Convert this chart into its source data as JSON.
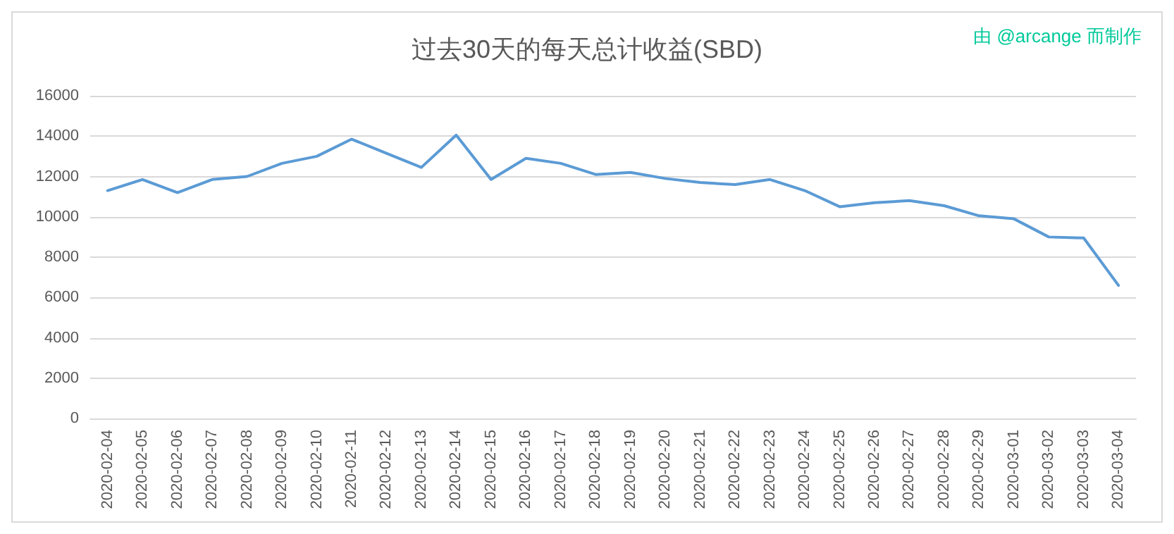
{
  "chart_data": {
    "type": "line",
    "title": "过去30天的每天总计收益(SBD)",
    "annotations": [
      "由 @arcange 而制作"
    ],
    "categories": [
      "2020-02-04",
      "2020-02-05",
      "2020-02-06",
      "2020-02-07",
      "2020-02-08",
      "2020-02-09",
      "2020-02-10",
      "2020-02-11",
      "2020-02-12",
      "2020-02-13",
      "2020-02-14",
      "2020-02-15",
      "2020-02-16",
      "2020-02-17",
      "2020-02-18",
      "2020-02-19",
      "2020-02-20",
      "2020-02-21",
      "2020-02-22",
      "2020-02-23",
      "2020-02-24",
      "2020-02-25",
      "2020-02-26",
      "2020-02-27",
      "2020-02-28",
      "2020-02-29",
      "2020-03-01",
      "2020-03-02",
      "2020-03-03",
      "2020-03-04"
    ],
    "series": [
      {
        "color": "#5b9bd5",
        "values": [
          11300,
          11850,
          11200,
          11850,
          12000,
          12650,
          13000,
          13850,
          13150,
          12450,
          14050,
          11850,
          12900,
          12650,
          12100,
          12200,
          11900,
          11700,
          11600,
          11850,
          11300,
          10500,
          10700,
          10800,
          10550,
          10050,
          9900,
          9000,
          8950,
          6600
        ]
      }
    ],
    "ylim": [
      0,
      16000
    ],
    "yticks": [
      0,
      2000,
      4000,
      6000,
      8000,
      10000,
      12000,
      14000,
      16000
    ],
    "grid": "y",
    "marker": "none",
    "line_style": "solid"
  }
}
